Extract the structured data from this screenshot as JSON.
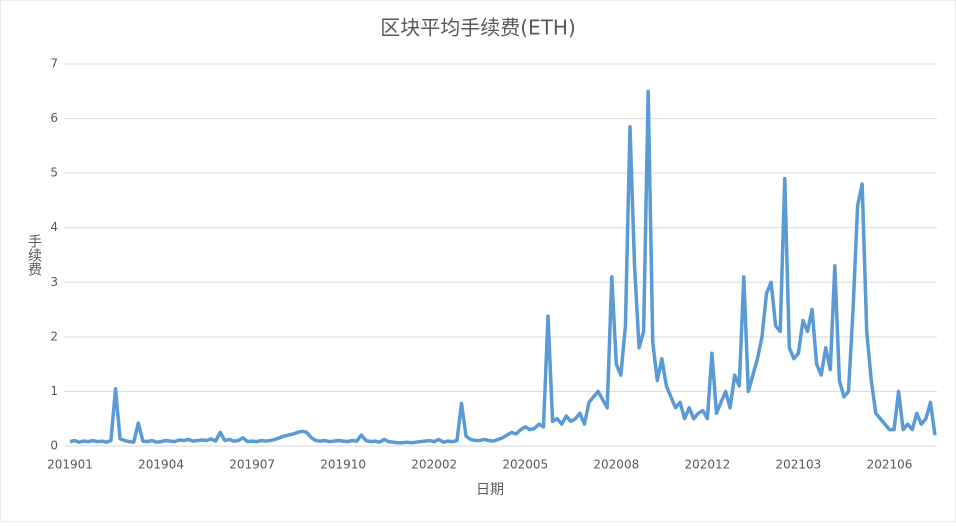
{
  "chart_data": {
    "type": "line",
    "title": "区块平均手续费(ETH)",
    "x_label": "日期",
    "y_label": "手续费",
    "categories": [
      "201901",
      null,
      null,
      null,
      null,
      null,
      null,
      null,
      null,
      null,
      null,
      null,
      null,
      null,
      null,
      null,
      null,
      null,
      null,
      null,
      "201904",
      null,
      null,
      null,
      null,
      null,
      null,
      null,
      null,
      null,
      null,
      null,
      null,
      null,
      null,
      null,
      null,
      null,
      null,
      null,
      "201907",
      null,
      null,
      null,
      null,
      null,
      null,
      null,
      null,
      null,
      null,
      null,
      null,
      null,
      null,
      null,
      null,
      null,
      null,
      null,
      "201910",
      null,
      null,
      null,
      null,
      null,
      null,
      null,
      null,
      null,
      null,
      null,
      null,
      null,
      null,
      null,
      null,
      null,
      null,
      null,
      "202002",
      null,
      null,
      null,
      null,
      null,
      null,
      null,
      null,
      null,
      null,
      null,
      null,
      null,
      null,
      null,
      null,
      null,
      null,
      null,
      "202005",
      null,
      null,
      null,
      null,
      null,
      null,
      null,
      null,
      null,
      null,
      null,
      null,
      null,
      null,
      null,
      null,
      null,
      null,
      null,
      "202008",
      null,
      null,
      null,
      null,
      null,
      null,
      null,
      null,
      null,
      null,
      null,
      null,
      null,
      null,
      null,
      null,
      null,
      null,
      null,
      "202012",
      null,
      null,
      null,
      null,
      null,
      null,
      null,
      null,
      null,
      null,
      null,
      null,
      null,
      null,
      null,
      null,
      null,
      null,
      null,
      "202103",
      null,
      null,
      null,
      null,
      null,
      null,
      null,
      null,
      null,
      null,
      null,
      null,
      null,
      null,
      null,
      null,
      null,
      null,
      null,
      "202106",
      null,
      null,
      null,
      null,
      null,
      null,
      null,
      null,
      null,
      null
    ],
    "values": [
      0.08,
      0.1,
      0.07,
      0.09,
      0.08,
      0.1,
      0.08,
      0.09,
      0.07,
      0.1,
      1.05,
      0.13,
      0.1,
      0.08,
      0.07,
      0.42,
      0.09,
      0.08,
      0.1,
      0.07,
      0.08,
      0.1,
      0.09,
      0.08,
      0.11,
      0.1,
      0.12,
      0.09,
      0.1,
      0.11,
      0.1,
      0.13,
      0.09,
      0.25,
      0.1,
      0.12,
      0.09,
      0.1,
      0.15,
      0.08,
      0.09,
      0.08,
      0.1,
      0.09,
      0.1,
      0.12,
      0.15,
      0.18,
      0.2,
      0.22,
      0.25,
      0.27,
      0.25,
      0.15,
      0.1,
      0.09,
      0.1,
      0.08,
      0.09,
      0.1,
      0.09,
      0.08,
      0.1,
      0.09,
      0.2,
      0.1,
      0.08,
      0.09,
      0.07,
      0.12,
      0.08,
      0.07,
      0.06,
      0.06,
      0.07,
      0.06,
      0.07,
      0.08,
      0.09,
      0.1,
      0.08,
      0.12,
      0.07,
      0.09,
      0.08,
      0.1,
      0.78,
      0.18,
      0.12,
      0.1,
      0.1,
      0.12,
      0.1,
      0.09,
      0.12,
      0.15,
      0.2,
      0.25,
      0.22,
      0.3,
      0.35,
      0.3,
      0.32,
      0.4,
      0.35,
      2.38,
      0.45,
      0.5,
      0.4,
      0.55,
      0.45,
      0.5,
      0.6,
      0.4,
      0.8,
      0.9,
      1.0,
      0.85,
      0.7,
      3.1,
      1.5,
      1.3,
      2.2,
      5.85,
      3.3,
      1.8,
      2.1,
      6.5,
      1.9,
      1.2,
      1.6,
      1.1,
      0.9,
      0.7,
      0.8,
      0.5,
      0.7,
      0.5,
      0.6,
      0.65,
      0.5,
      1.7,
      0.6,
      0.8,
      1.0,
      0.7,
      1.3,
      1.1,
      3.1,
      1.0,
      1.3,
      1.6,
      2.0,
      2.8,
      3.0,
      2.2,
      2.1,
      4.9,
      1.8,
      1.6,
      1.7,
      2.3,
      2.1,
      2.5,
      1.5,
      1.3,
      1.8,
      1.4,
      3.3,
      1.2,
      0.9,
      1.0,
      2.5,
      4.4,
      4.8,
      2.1,
      1.2,
      0.6,
      0.5,
      0.4,
      0.3,
      0.3,
      1.0,
      0.3,
      0.4,
      0.3,
      0.6,
      0.4,
      0.5,
      0.8,
      0.2
    ],
    "color": "#5b9bd5",
    "ylim": [
      0,
      7
    ],
    "yticks": [
      0,
      1,
      2,
      3,
      4,
      5,
      6,
      7
    ],
    "grid": true
  }
}
